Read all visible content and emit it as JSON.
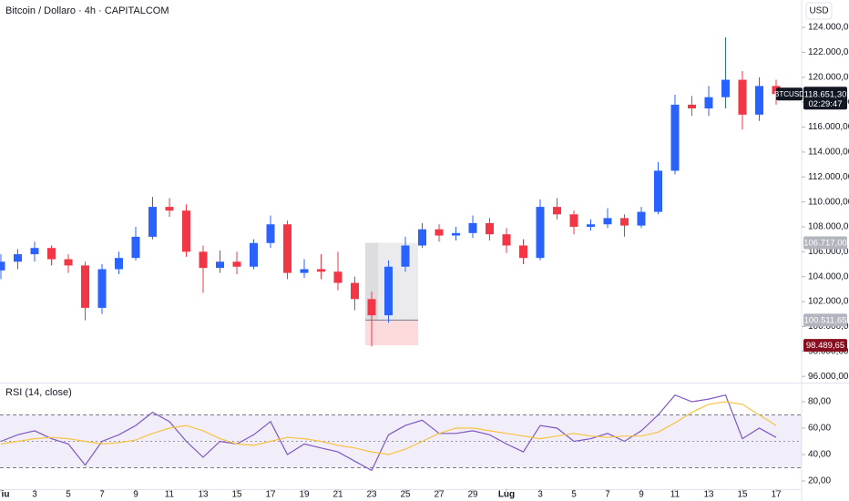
{
  "chart_data": [
    {
      "type": "candlestick",
      "title": "Bitcoin / Dollaro · 4h · CAPITALCOM",
      "currency": "USD",
      "symbol": "BTCUSD",
      "countdown": "02:29:47",
      "up_color": "#2962ff",
      "down_color": "#f23645",
      "x": [
        1,
        2,
        3,
        4,
        5,
        6,
        7,
        8,
        9,
        10,
        11,
        12,
        13,
        14,
        15,
        16,
        17,
        18,
        19,
        20,
        21,
        22,
        23,
        24,
        25,
        26,
        27,
        28,
        29,
        30,
        31,
        32,
        33,
        34,
        35,
        36,
        37,
        38,
        39,
        40,
        41,
        42,
        43,
        44,
        45,
        46,
        47
      ],
      "open": [
        104500,
        105200,
        105800,
        106300,
        105400,
        104900,
        101500,
        104600,
        105500,
        107200,
        109600,
        109300,
        106000,
        104700,
        105200,
        104800,
        106700,
        108200,
        104300,
        104600,
        104400,
        103500,
        102200,
        100900,
        104800,
        106500,
        107800,
        107300,
        107500,
        108300,
        107400,
        106500,
        105500,
        109600,
        109000,
        108000,
        108200,
        108700,
        108100,
        109200,
        112500,
        117800,
        117500,
        118400,
        119800,
        117000,
        119300
      ],
      "high": [
        105800,
        106200,
        106800,
        106500,
        105800,
        105200,
        105000,
        106000,
        108000,
        110400,
        110300,
        109800,
        106500,
        106100,
        106000,
        107000,
        108900,
        108500,
        105400,
        105800,
        106000,
        104000,
        102800,
        105300,
        107200,
        108300,
        108200,
        108000,
        108900,
        108700,
        107900,
        107000,
        110200,
        110300,
        109300,
        108600,
        109500,
        109000,
        109600,
        113200,
        118600,
        118500,
        119300,
        123200,
        120500,
        120000,
        119800
      ],
      "low": [
        103800,
        104600,
        105200,
        104900,
        104300,
        100500,
        101000,
        104200,
        105300,
        107000,
        108800,
        105600,
        102700,
        104300,
        104200,
        104600,
        106300,
        103800,
        103900,
        103800,
        102900,
        101300,
        98400,
        100300,
        104400,
        106300,
        106800,
        106900,
        107100,
        106900,
        105900,
        105000,
        105300,
        108600,
        107400,
        107700,
        107900,
        107200,
        107900,
        109000,
        112200,
        116900,
        116900,
        117500,
        115800,
        116500,
        117800
      ],
      "close": [
        105200,
        105800,
        106300,
        105400,
        104900,
        101500,
        104600,
        105500,
        107200,
        109600,
        109300,
        106000,
        104700,
        105200,
        104800,
        106700,
        108200,
        104300,
        104600,
        104400,
        103500,
        102200,
        100900,
        104800,
        106500,
        107800,
        107300,
        107500,
        108300,
        107400,
        106500,
        105500,
        109600,
        109000,
        108000,
        108200,
        108700,
        108100,
        109200,
        112500,
        117800,
        117500,
        118400,
        119800,
        117000,
        119300,
        118651.3
      ],
      "last_price": {
        "value": 118651.3,
        "label": "118.651,30"
      },
      "price_levels": [
        {
          "value": 106717,
          "label": "106.717,00",
          "color": "#b2b5be"
        },
        {
          "value": 100511.65,
          "label": "100.511,65",
          "color": "#b2b5be"
        },
        {
          "value": 98489.65,
          "label": "98.489,65",
          "color": "#880e1e"
        }
      ],
      "xlim": [
        1,
        48.5
      ],
      "ylim": [
        95500,
        126200
      ],
      "yticks": [
        {
          "value": 96000,
          "label": "96.000,00"
        },
        {
          "value": 98000,
          "label": "98.000,00"
        },
        {
          "value": 100000,
          "label": "100.000,00"
        },
        {
          "value": 102000,
          "label": "102.000,00"
        },
        {
          "value": 104000,
          "label": "104.000,00"
        },
        {
          "value": 106000,
          "label": "106.000,00"
        },
        {
          "value": 108000,
          "label": "108.000,00"
        },
        {
          "value": 110000,
          "label": "110.000,00"
        },
        {
          "value": 112000,
          "label": "112.000,00"
        },
        {
          "value": 114000,
          "label": "114.000,00"
        },
        {
          "value": 116000,
          "label": "116.000,00"
        },
        {
          "value": 118000,
          "label": "118.000,00"
        },
        {
          "value": 120000,
          "label": "120.000,00"
        },
        {
          "value": 122000,
          "label": "122.000,00"
        },
        {
          "value": 124000,
          "label": "124.000,00"
        }
      ]
    },
    {
      "type": "line",
      "title": "RSI (14, close)",
      "x": [
        1,
        2,
        3,
        4,
        5,
        6,
        7,
        8,
        9,
        10,
        11,
        12,
        13,
        14,
        15,
        16,
        17,
        18,
        19,
        20,
        21,
        22,
        23,
        24,
        25,
        26,
        27,
        28,
        29,
        30,
        31,
        32,
        33,
        34,
        35,
        36,
        37,
        38,
        39,
        40,
        41,
        42,
        43,
        44,
        45,
        46,
        47
      ],
      "series": [
        {
          "color": "#7e57c2",
          "values": [
            50,
            55,
            58,
            52,
            48,
            32,
            50,
            55,
            62,
            72,
            65,
            50,
            38,
            50,
            48,
            55,
            65,
            40,
            48,
            45,
            42,
            35,
            28,
            55,
            62,
            66,
            56,
            56,
            58,
            55,
            48,
            42,
            62,
            60,
            50,
            52,
            56,
            50,
            58,
            70,
            85,
            80,
            82,
            85,
            52,
            60,
            53
          ]
        },
        {
          "color": "#f7c342",
          "values": [
            48,
            50,
            52,
            53,
            52,
            50,
            48,
            49,
            51,
            56,
            60,
            62,
            58,
            52,
            48,
            47,
            50,
            53,
            52,
            50,
            47,
            45,
            42,
            40,
            44,
            50,
            56,
            60,
            60,
            58,
            56,
            54,
            52,
            54,
            56,
            54,
            53,
            54,
            54,
            57,
            64,
            72,
            78,
            80,
            78,
            70,
            62
          ]
        }
      ],
      "band": [
        30,
        70
      ],
      "middle": 50,
      "xlim": [
        1,
        48.5
      ],
      "ylim": [
        13.8,
        93.1
      ],
      "yticks": [
        {
          "value": 20,
          "label": "20,00"
        },
        {
          "value": 40,
          "label": "40,00"
        },
        {
          "value": 60,
          "label": "60,00"
        },
        {
          "value": 80,
          "label": "80,00"
        }
      ],
      "xticks": [
        {
          "value": 1,
          "label": "iu"
        },
        3,
        5,
        7,
        9,
        11,
        13,
        15,
        17,
        19,
        21,
        23,
        25,
        27,
        29,
        {
          "value": 31,
          "label": "Lug"
        },
        {
          "value": 33,
          "label": "3"
        },
        {
          "value": 35,
          "label": "5"
        },
        {
          "value": 37,
          "label": "7"
        },
        {
          "value": 39,
          "label": "9"
        },
        {
          "value": 41,
          "label": "11"
        },
        {
          "value": 43,
          "label": "13"
        },
        {
          "value": 45,
          "label": "15"
        },
        {
          "value": 47,
          "label": "17"
        }
      ]
    }
  ]
}
